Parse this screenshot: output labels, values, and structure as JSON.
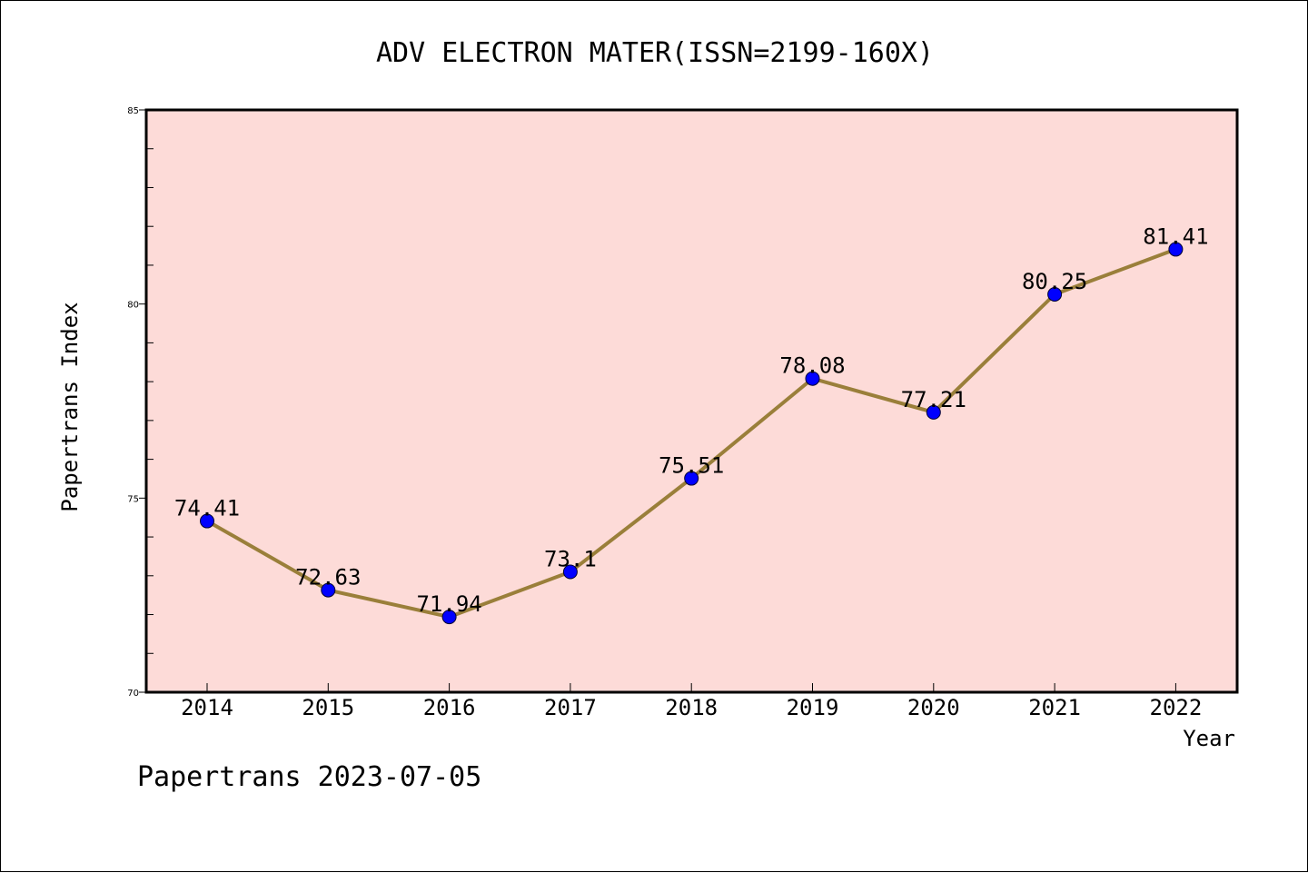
{
  "chart_data": {
    "type": "line",
    "title": "ADV ELECTRON MATER(ISSN=2199-160X)",
    "xlabel": "Year",
    "ylabel": "Papertrans Index",
    "categories": [
      "2014",
      "2015",
      "2016",
      "2017",
      "2018",
      "2019",
      "2020",
      "2021",
      "2022"
    ],
    "values": [
      74.41,
      72.63,
      71.94,
      73.1,
      75.51,
      78.08,
      77.21,
      80.25,
      81.41
    ],
    "data_labels": [
      "74.41",
      "72.63",
      "71.94",
      "73.1",
      "75.51",
      "78.08",
      "77.21",
      "80.25",
      "81.41"
    ],
    "ylim": [
      70,
      85
    ],
    "yticks": [
      70,
      75,
      80,
      85
    ],
    "grid": false,
    "footer": "Papertrans 2023-07-05"
  },
  "colors": {
    "plot_background": "#fddbd8",
    "line": "#9a7f3a",
    "marker": "#0000ff",
    "axis": "#000000"
  }
}
